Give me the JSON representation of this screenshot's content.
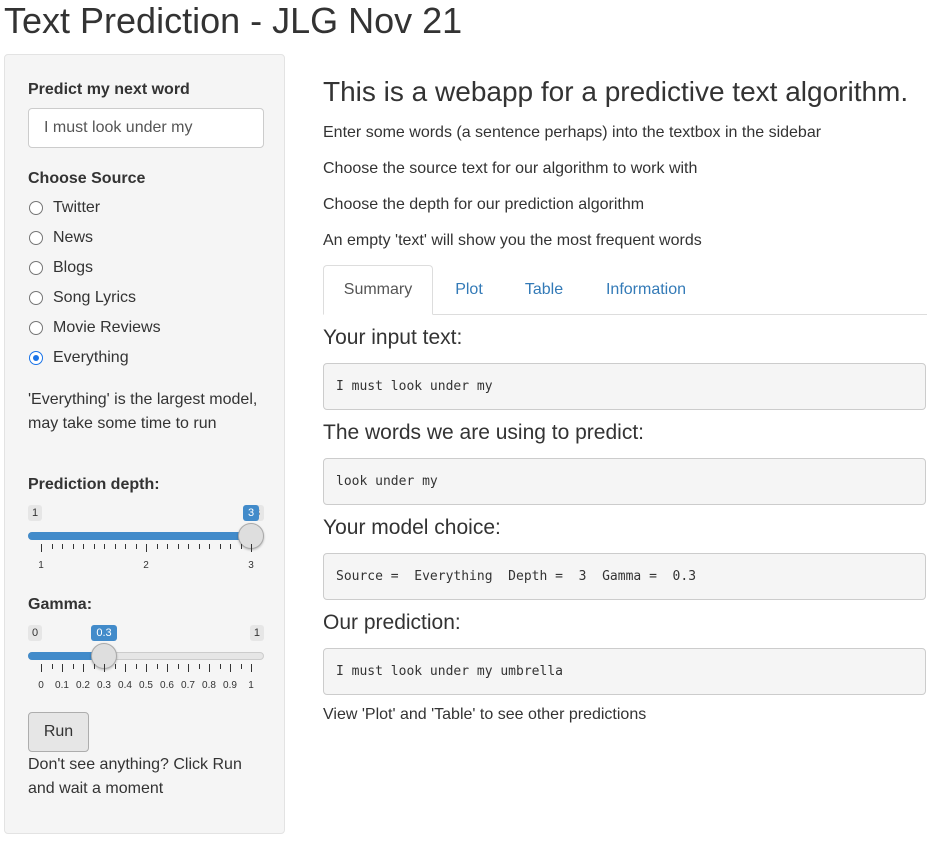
{
  "app": {
    "title": "Text Prediction - JLG Nov 21"
  },
  "sidebar": {
    "predict_label": "Predict my next word",
    "predict_value": "I must look under my",
    "source_label": "Choose Source",
    "sources": [
      {
        "label": "Twitter",
        "checked": false
      },
      {
        "label": "News",
        "checked": false
      },
      {
        "label": "Blogs",
        "checked": false
      },
      {
        "label": "Song Lyrics",
        "checked": false
      },
      {
        "label": "Movie Reviews",
        "checked": false
      },
      {
        "label": "Everything",
        "checked": true
      }
    ],
    "source_help": "'Everything' is the largest model, may take some time to run",
    "depth": {
      "label": "Prediction depth:",
      "min": 1,
      "max": 3,
      "value": 3,
      "min_label": "1",
      "max_label": "3",
      "value_label": "3",
      "tick_labels": [
        "1",
        "2",
        "3"
      ]
    },
    "gamma": {
      "label": "Gamma:",
      "min": 0,
      "max": 1,
      "value": 0.3,
      "min_label": "0",
      "max_label": "1",
      "value_label": "0.3",
      "tick_labels": [
        "0",
        "0.1",
        "0.2",
        "0.3",
        "0.4",
        "0.5",
        "0.6",
        "0.7",
        "0.8",
        "0.9",
        "1"
      ]
    },
    "run_label": "Run",
    "run_help": "Don't see anything? Click Run and wait a moment"
  },
  "main": {
    "heading": "This is a webapp for a predictive text algorithm.",
    "instructions": [
      "Enter some words (a sentence perhaps) into the textbox in the sidebar",
      "Choose the source text for our algorithm to work with",
      "Choose the depth for our prediction algorithm",
      "An empty 'text' will show you the most frequent words"
    ],
    "tabs": [
      {
        "label": "Summary",
        "active": true
      },
      {
        "label": "Plot",
        "active": false
      },
      {
        "label": "Table",
        "active": false
      },
      {
        "label": "Information",
        "active": false
      }
    ],
    "summary": {
      "input_heading": "Your input text:",
      "input_text": "I must look under my",
      "words_heading": "The words we are using to predict:",
      "words_text": "look under my",
      "model_heading": "Your model choice:",
      "model_text": "Source =  Everything  Depth =  3  Gamma =  0.3",
      "prediction_heading": "Our prediction:",
      "prediction_text": "I must look under my umbrella",
      "footer": "View 'Plot' and 'Table' to see other predictions"
    }
  }
}
